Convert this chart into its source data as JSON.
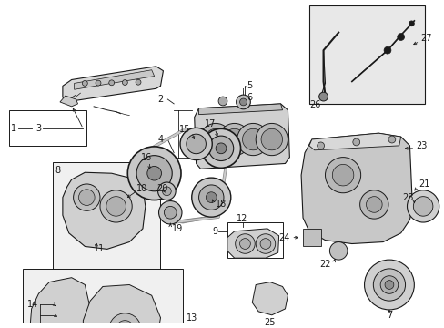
{
  "bg_color": "#ffffff",
  "fig_width": 4.89,
  "fig_height": 3.6,
  "dpi": 100,
  "lc": "#1a1a1a",
  "fc_light": "#e8e8e8",
  "fc_med": "#d0d0d0",
  "fc_dark": "#b8b8b8",
  "label_fontsize": 7,
  "anno_fontsize": 7
}
